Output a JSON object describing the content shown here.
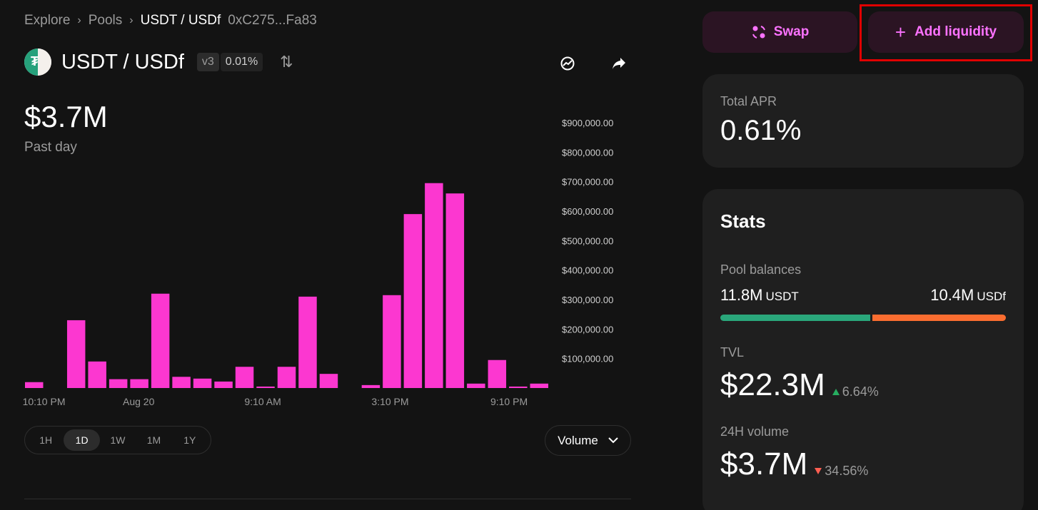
{
  "breadcrumb": {
    "explore": "Explore",
    "pools": "Pools",
    "current": "USDT / USDf",
    "address": "0xC275...Fa83"
  },
  "pool": {
    "name": "USDT / USDf",
    "version": "v3",
    "fee": "0.01%"
  },
  "summary": {
    "value": "$3.7M",
    "period": "Past day"
  },
  "chart_data": {
    "type": "bar",
    "x_tick_labels": [
      "10:10 PM",
      "Aug 20",
      "9:10 AM",
      "3:10 PM",
      "9:10 PM"
    ],
    "y_tick_labels": [
      "$100,000.00",
      "$200,000.00",
      "$300,000.00",
      "$400,000.00",
      "$500,000.00",
      "$600,000.00",
      "$700,000.00",
      "$800,000.00",
      "$900,000.00"
    ],
    "ylim": [
      0,
      900000
    ],
    "values": [
      20000,
      0,
      230000,
      90000,
      30000,
      30000,
      320000,
      38000,
      32000,
      22000,
      72000,
      5000,
      72000,
      310000,
      48000,
      0,
      10000,
      315000,
      590000,
      695000,
      660000,
      15000,
      95000,
      5000,
      15000
    ],
    "color": "#fc37d0"
  },
  "time_ranges": [
    "1H",
    "1D",
    "1W",
    "1M",
    "1Y"
  ],
  "active_range": "1D",
  "chart_select": "Volume",
  "actions": {
    "swap": "Swap",
    "add_liquidity": "Add liquidity"
  },
  "apr": {
    "label": "Total APR",
    "value": "0.61%"
  },
  "stats": {
    "title": "Stats",
    "balances_label": "Pool balances",
    "token0_amount": "11.8M",
    "token0_symbol": "USDT",
    "token1_amount": "10.4M",
    "token1_symbol": "USDf",
    "token0_share": 0.53,
    "tvl_label": "TVL",
    "tvl_value": "$22.3M",
    "tvl_change": "6.64%",
    "volume_label": "24H volume",
    "volume_value": "$3.7M",
    "volume_change": "34.56%"
  },
  "colors": {
    "accent": "#fc72ff",
    "bar": "#fc37d0",
    "positive": "#27ae60",
    "negative": "#ff5f52",
    "usdt": "#2aa77b",
    "usdf": "#fa6d30"
  }
}
